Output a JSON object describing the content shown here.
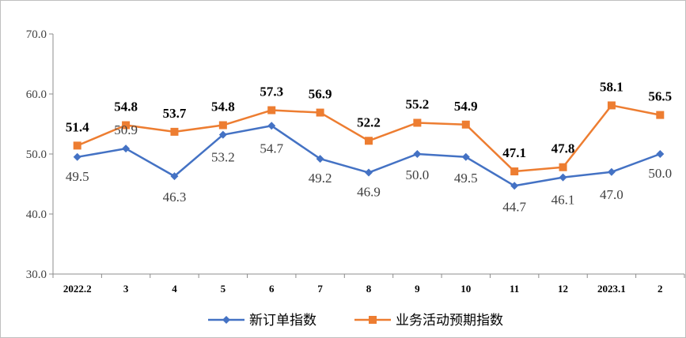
{
  "chart_data": {
    "type": "line",
    "categories": [
      "2022.2",
      "3",
      "4",
      "5",
      "6",
      "7",
      "8",
      "9",
      "10",
      "11",
      "12",
      "2023.1",
      "2"
    ],
    "series": [
      {
        "name": "新订单指数",
        "values": [
          49.5,
          50.9,
          46.3,
          53.2,
          54.7,
          49.2,
          46.9,
          50.0,
          49.5,
          44.7,
          46.1,
          47.0,
          50.0
        ],
        "labels": [
          "49.5",
          "50.9",
          "46.3",
          "53.2",
          "54.7",
          "49.2",
          "46.9",
          "50.0",
          "49.5",
          "44.7",
          "46.1",
          "47.0",
          "50.0"
        ],
        "color": "#4472C4",
        "marker": "diamond"
      },
      {
        "name": "业务活动预期指数",
        "values": [
          51.4,
          54.8,
          53.7,
          54.8,
          57.3,
          56.9,
          52.2,
          55.2,
          54.9,
          47.1,
          47.8,
          58.1,
          56.5
        ],
        "labels": [
          "51.4",
          "54.8",
          "53.7",
          "54.8",
          "57.3",
          "56.9",
          "52.2",
          "55.2",
          "54.9",
          "47.1",
          "47.8",
          "58.1",
          "56.5"
        ],
        "color": "#ED7D31",
        "marker": "square"
      }
    ],
    "ylim": [
      30,
      70
    ],
    "yticks": [
      "30.0",
      "40.0",
      "50.0",
      "60.0",
      "70.0"
    ],
    "grid": false,
    "legend_position": "bottom"
  }
}
